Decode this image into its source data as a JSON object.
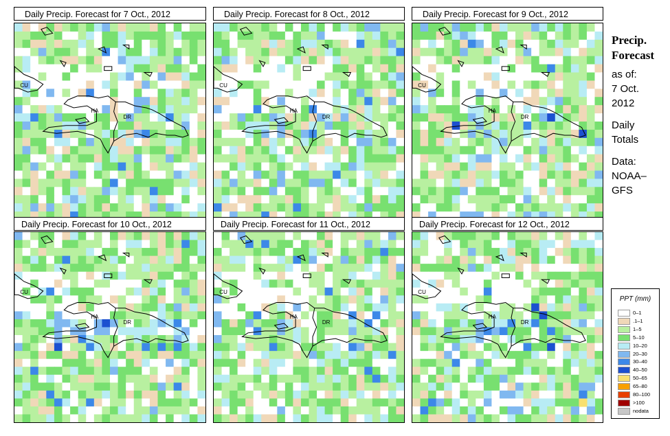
{
  "panels": [
    {
      "title": "Daily Precip. Forecast for  7 Oct., 2012",
      "seed": 11,
      "country_labels": [
        "CU",
        "HA",
        "DR"
      ]
    },
    {
      "title": "Daily Precip. Forecast for  8 Oct., 2012",
      "seed": 23,
      "country_labels": [
        "CU",
        "HA",
        "DR"
      ]
    },
    {
      "title": "Daily Precip. Forecast for  9 Oct., 2012",
      "seed": 37,
      "country_labels": [
        "CU",
        "HA",
        "DR"
      ]
    },
    {
      "title": "Daily Precip. Forecast for  10 Oct., 2012",
      "seed": 41,
      "country_labels": [
        "CU",
        "HA",
        "DR"
      ]
    },
    {
      "title": "Daily Precip. Forecast for  11 Oct., 2012",
      "seed": 53,
      "country_labels": [
        "CU",
        "HA",
        "DR"
      ]
    },
    {
      "title": "Daily Precip. Forecast for  12 Oct., 2012",
      "seed": 67,
      "country_labels": [
        "CU",
        "HA",
        "DR"
      ]
    }
  ],
  "sidebar": {
    "title1": "Precip.",
    "title2": "Forecast",
    "asof": "as of:",
    "date1": "7 Oct.",
    "date2": "2012",
    "daily1": "Daily",
    "daily2": "Totals",
    "data1": "Data:",
    "data2": "NOAA–",
    "data3": "GFS"
  },
  "legend": {
    "title": "PPT (mm)",
    "items": [
      {
        "label": "0–1",
        "color": "#ffffff"
      },
      {
        "label": ".1–1",
        "color": "#f0d8b8"
      },
      {
        "label": "1–5",
        "color": "#b8f0a0"
      },
      {
        "label": "5–10",
        "color": "#78e070"
      },
      {
        "label": "10–20",
        "color": "#b8ecf4"
      },
      {
        "label": "20–30",
        "color": "#80b8f0"
      },
      {
        "label": "30–40",
        "color": "#3c88e8"
      },
      {
        "label": "40–50",
        "color": "#1c50d0"
      },
      {
        "label": "50–65",
        "color": "#f8e070"
      },
      {
        "label": "65–80",
        "color": "#f8a000"
      },
      {
        "label": "80–100",
        "color": "#e84000"
      },
      {
        "label": ">100",
        "color": "#a00000"
      },
      {
        "label": "nodata",
        "color": "#c8c8c8"
      }
    ]
  }
}
